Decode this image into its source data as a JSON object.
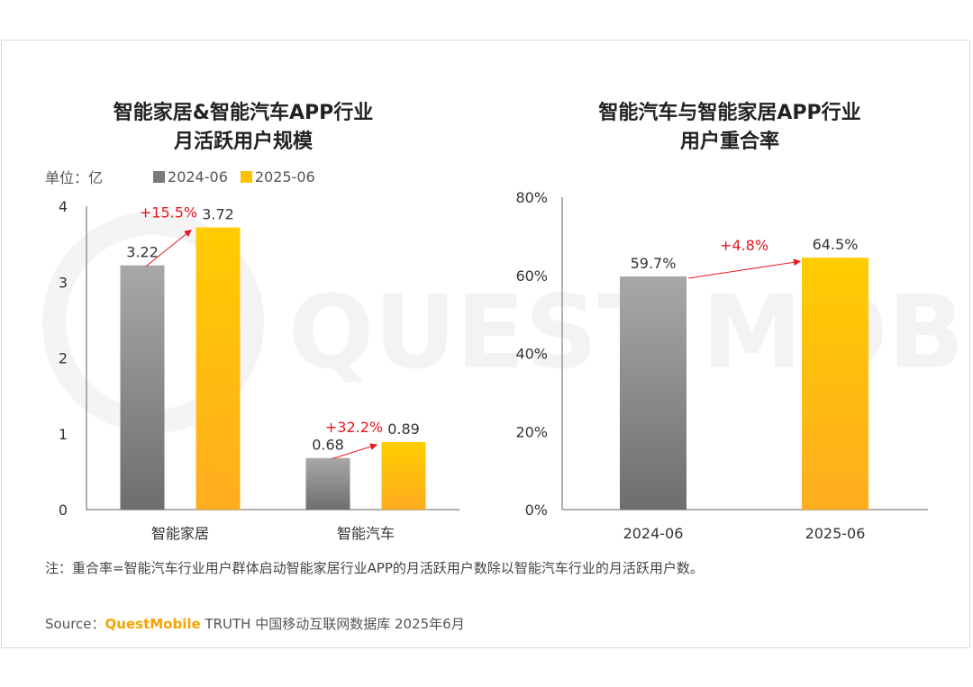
{
  "watermark": "QUEST MOBILE",
  "note": "注：重合率=智能汽车行业用户群体启动智能家居行业APP的月活跃用户数除以智能汽车行业的月活跃用户数。",
  "source": {
    "prefix": "Source：",
    "brand": "QuestMobile",
    "suffix": " TRUTH 中国移动互联网数据库 2025年6月"
  },
  "legend": {
    "unit": "单位：亿",
    "items": [
      "2024-06",
      "2025-06"
    ]
  },
  "colors": {
    "series_2024": "#8c8c8c",
    "series_2025": "#ffc000",
    "growth": "#e8161f"
  },
  "chart_data": [
    {
      "type": "bar",
      "title_lines": [
        "智能家居&智能汽车APP行业",
        "月活跃用户规模"
      ],
      "categories": [
        "智能家居",
        "智能汽车"
      ],
      "series": [
        {
          "name": "2024-06",
          "values": [
            3.22,
            0.68
          ]
        },
        {
          "name": "2025-06",
          "values": [
            3.72,
            0.89
          ]
        }
      ],
      "value_labels": [
        [
          "3.22",
          "0.68"
        ],
        [
          "3.72",
          "0.89"
        ]
      ],
      "growth_labels": [
        "+15.5%",
        "+32.2%"
      ],
      "yticks": [
        "0",
        "1",
        "2",
        "3",
        "4"
      ],
      "ylim": [
        0,
        4
      ],
      "grid": false
    },
    {
      "type": "bar",
      "title_lines": [
        "智能汽车与智能家居APP行业",
        "用户重合率"
      ],
      "categories": [
        "2024-06",
        "2025-06"
      ],
      "values": [
        59.7,
        64.5
      ],
      "value_labels": [
        "59.7%",
        "64.5%"
      ],
      "growth_label": "+4.8%",
      "yticks": [
        "0%",
        "20%",
        "40%",
        "60%",
        "80%"
      ],
      "ylim": [
        0,
        80
      ],
      "grid": false
    }
  ]
}
